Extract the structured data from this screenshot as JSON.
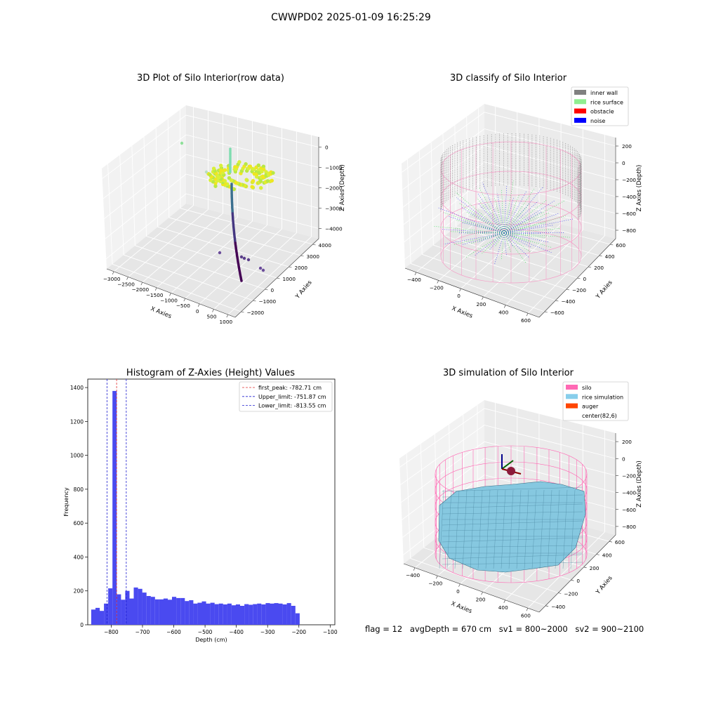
{
  "figure": {
    "title": "CWWPD02 2025-01-09 16:25:29"
  },
  "chart_data": [
    {
      "type": "scatter",
      "title": "3D Plot of Silo Interior(row data)",
      "xlabel": "X Axies",
      "ylabel": "Y Axies",
      "zlabel": "Z Axies (Depth)",
      "x_ticks": [
        "−3000",
        "−2500",
        "−2000",
        "−1500",
        "−1000",
        "−500",
        "0",
        "500",
        "1000"
      ],
      "y_ticks": [
        "−2000",
        "−1000",
        "0",
        "1000",
        "2000",
        "3000",
        "4000"
      ],
      "z_ticks": [
        "0",
        "−1000",
        "−2000",
        "−3000",
        "−4000"
      ],
      "xlim": [
        -3000,
        1000
      ],
      "ylim": [
        -2000,
        4000
      ],
      "zlim": [
        -4500,
        0
      ],
      "colormap": "viridis",
      "grid": true
    },
    {
      "type": "scatter",
      "title": "3D classify of Silo Interior",
      "xlabel": "X Axies",
      "ylabel": "Y Axies",
      "zlabel": "Z Axies (Depth)",
      "x_ticks": [
        "−400",
        "−200",
        "0",
        "200",
        "400",
        "600"
      ],
      "y_ticks": [
        "−600",
        "−400",
        "−200",
        "0",
        "200",
        "400",
        "600"
      ],
      "z_ticks": [
        "200",
        "0",
        "−200",
        "−400",
        "−600",
        "−800"
      ],
      "xlim": [
        -500,
        700
      ],
      "ylim": [
        -600,
        700
      ],
      "zlim": [
        -900,
        300
      ],
      "legend": [
        {
          "label": "inner wall",
          "color": "#808080"
        },
        {
          "label": "rice surface",
          "color": "#90ee90"
        },
        {
          "label": "obstacle",
          "color": "#ff0000"
        },
        {
          "label": "noise",
          "color": "#0000ff"
        }
      ],
      "legend_position": "top-right",
      "grid": true
    },
    {
      "type": "bar",
      "title": "Histogram of Z-Axies (Height) Values",
      "xlabel": "Depth (cm)",
      "ylabel": "Frequency",
      "x_ticks": [
        "−800",
        "−700",
        "−600",
        "−500",
        "−400",
        "−300",
        "−200",
        "−100"
      ],
      "y_ticks": [
        "0",
        "200",
        "400",
        "600",
        "800",
        "1000",
        "1200",
        "1400"
      ],
      "xlim": [
        -875,
        -85
      ],
      "ylim": [
        0,
        1450
      ],
      "bar_color": "#4a4af0",
      "bin_width": 13.6,
      "bin_start": -864,
      "values": [
        90,
        100,
        82,
        125,
        215,
        1380,
        180,
        148,
        200,
        155,
        220,
        212,
        190,
        170,
        165,
        150,
        150,
        155,
        148,
        165,
        158,
        158,
        140,
        145,
        125,
        130,
        138,
        125,
        130,
        122,
        125,
        120,
        125,
        115,
        120,
        112,
        122,
        118,
        122,
        125,
        120,
        128,
        125,
        128,
        125,
        120,
        128,
        112,
        68
      ],
      "reference_lines": [
        {
          "label": "first_peak: -782.71 cm",
          "x": -782.71,
          "color": "#e03030"
        },
        {
          "label": "Upper_limit: -751.87 cm",
          "x": -751.87,
          "color": "#2020d0"
        },
        {
          "label": "Lower_limit: -813.55 cm",
          "x": -813.55,
          "color": "#2020d0"
        }
      ],
      "legend_position": "top-right"
    },
    {
      "type": "surface",
      "title": "3D simulation of Silo Interior",
      "xlabel": "X Axies",
      "ylabel": "Y Axies",
      "zlabel": "Z Axies (Depth)",
      "x_ticks": [
        "−400",
        "−200",
        "0",
        "200",
        "400",
        "600"
      ],
      "y_ticks": [
        "−400",
        "−200",
        "0",
        "200",
        "400",
        "600"
      ],
      "z_ticks": [
        "200",
        "0",
        "−200",
        "−400",
        "−600",
        "−800"
      ],
      "xlim": [
        -500,
        700
      ],
      "ylim": [
        -500,
        700
      ],
      "zlim": [
        -900,
        300
      ],
      "legend": [
        {
          "label": "silo",
          "color": "#ff69b4"
        },
        {
          "label": "rice simulation",
          "color": "#87ceeb"
        },
        {
          "label": "auger",
          "color": "#ff4500"
        },
        {
          "label": "center(82,6)",
          "color": ""
        }
      ],
      "legend_position": "top-right",
      "grid": true
    }
  ],
  "status": {
    "flag": "flag = 12",
    "avg_depth": "avgDepth = 670 cm",
    "sv1": "sv1 = 800~2000",
    "sv2": "sv2 = 900~2100"
  }
}
